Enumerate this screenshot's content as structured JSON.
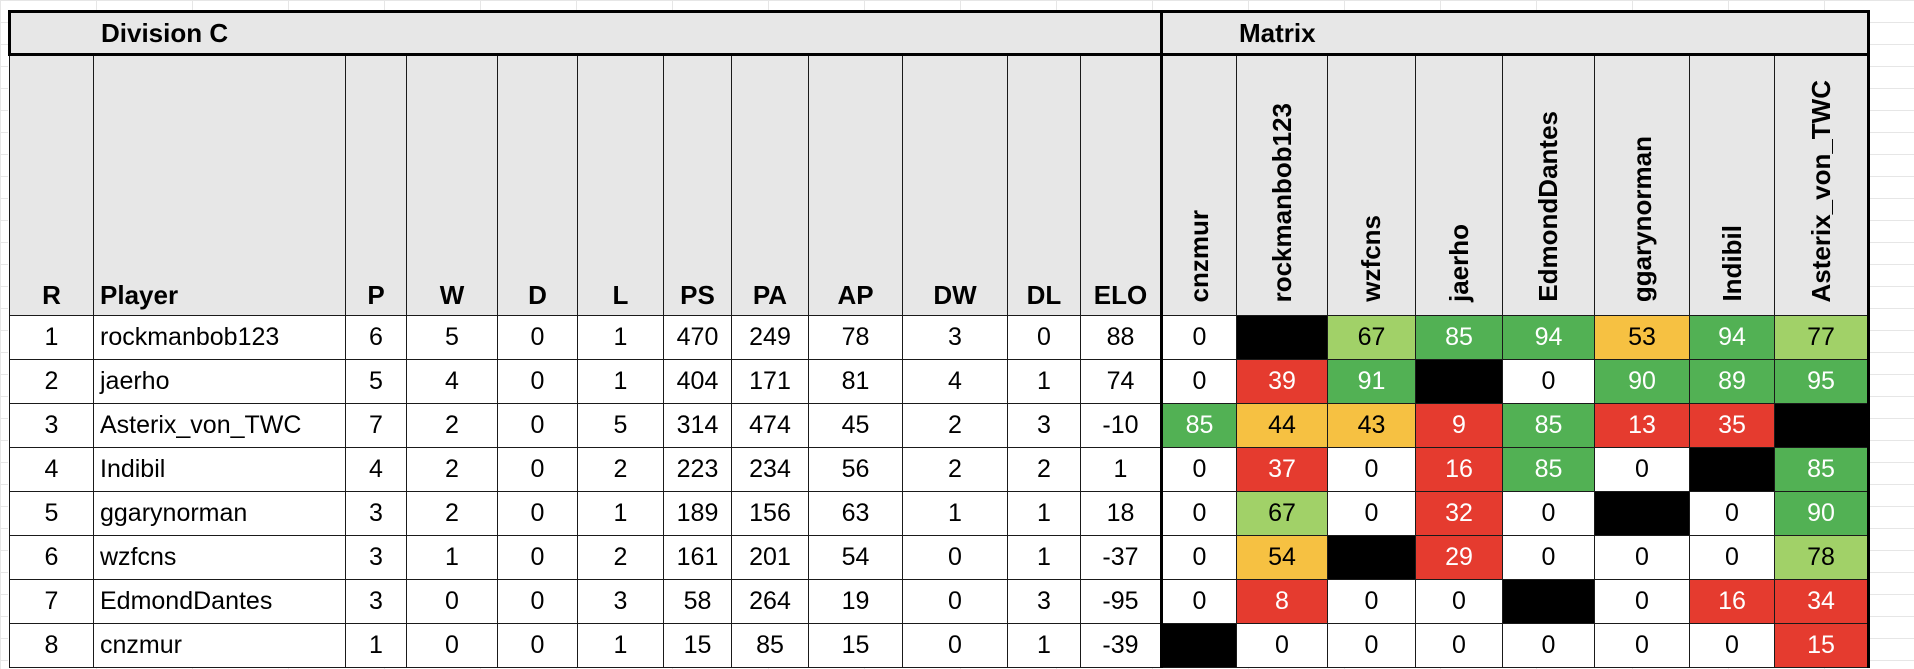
{
  "title": "Division C",
  "matrix_title": "Matrix",
  "headers": [
    "R",
    "Player",
    "P",
    "W",
    "D",
    "L",
    "PS",
    "PA",
    "AP",
    "DW",
    "DL",
    "ELO"
  ],
  "matrix_columns": [
    "cnzmur",
    "rockmanbob123",
    "wzfcns",
    "jaerho",
    "EdmondDantes",
    "ggarynorman",
    "Indibil",
    "Asterix_von_TWC"
  ],
  "colors": {
    "red": "#e53b2f",
    "orange": "#f6c142",
    "light_green": "#a1d168",
    "green": "#52b154",
    "black": "#000000",
    "header_bg": "#e7e7e7"
  },
  "rows": [
    {
      "r": "1",
      "player": "rockmanbob123",
      "p": "6",
      "w": "5",
      "d": "0",
      "l": "1",
      "ps": "470",
      "pa": "249",
      "ap": "78",
      "dw": "3",
      "dl": "0",
      "elo": "88",
      "matrix": [
        {
          "v": "0",
          "c": ""
        },
        {
          "v": "",
          "c": "black"
        },
        {
          "v": "67",
          "c": "lgreen"
        },
        {
          "v": "85",
          "c": "green"
        },
        {
          "v": "94",
          "c": "green"
        },
        {
          "v": "53",
          "c": "orange"
        },
        {
          "v": "94",
          "c": "green"
        },
        {
          "v": "77",
          "c": "lgreen"
        }
      ]
    },
    {
      "r": "2",
      "player": "jaerho",
      "p": "5",
      "w": "4",
      "d": "0",
      "l": "1",
      "ps": "404",
      "pa": "171",
      "ap": "81",
      "dw": "4",
      "dl": "1",
      "elo": "74",
      "matrix": [
        {
          "v": "0",
          "c": ""
        },
        {
          "v": "39",
          "c": "red"
        },
        {
          "v": "91",
          "c": "green"
        },
        {
          "v": "",
          "c": "black"
        },
        {
          "v": "0",
          "c": ""
        },
        {
          "v": "90",
          "c": "green"
        },
        {
          "v": "89",
          "c": "green"
        },
        {
          "v": "95",
          "c": "green"
        }
      ]
    },
    {
      "r": "3",
      "player": "Asterix_von_TWC",
      "p": "7",
      "w": "2",
      "d": "0",
      "l": "5",
      "ps": "314",
      "pa": "474",
      "ap": "45",
      "dw": "2",
      "dl": "3",
      "elo": "-10",
      "matrix": [
        {
          "v": "85",
          "c": "green"
        },
        {
          "v": "44",
          "c": "orange"
        },
        {
          "v": "43",
          "c": "orange"
        },
        {
          "v": "9",
          "c": "red"
        },
        {
          "v": "85",
          "c": "green"
        },
        {
          "v": "13",
          "c": "red"
        },
        {
          "v": "35",
          "c": "red"
        },
        {
          "v": "",
          "c": "black"
        }
      ]
    },
    {
      "r": "4",
      "player": "Indibil",
      "p": "4",
      "w": "2",
      "d": "0",
      "l": "2",
      "ps": "223",
      "pa": "234",
      "ap": "56",
      "dw": "2",
      "dl": "2",
      "elo": "1",
      "matrix": [
        {
          "v": "0",
          "c": ""
        },
        {
          "v": "37",
          "c": "red"
        },
        {
          "v": "0",
          "c": ""
        },
        {
          "v": "16",
          "c": "red"
        },
        {
          "v": "85",
          "c": "green"
        },
        {
          "v": "0",
          "c": ""
        },
        {
          "v": "",
          "c": "black"
        },
        {
          "v": "85",
          "c": "green"
        }
      ]
    },
    {
      "r": "5",
      "player": "ggarynorman",
      "p": "3",
      "w": "2",
      "d": "0",
      "l": "1",
      "ps": "189",
      "pa": "156",
      "ap": "63",
      "dw": "1",
      "dl": "1",
      "elo": "18",
      "matrix": [
        {
          "v": "0",
          "c": ""
        },
        {
          "v": "67",
          "c": "lgreen"
        },
        {
          "v": "0",
          "c": ""
        },
        {
          "v": "32",
          "c": "red"
        },
        {
          "v": "0",
          "c": ""
        },
        {
          "v": "",
          "c": "black"
        },
        {
          "v": "0",
          "c": ""
        },
        {
          "v": "90",
          "c": "green"
        }
      ]
    },
    {
      "r": "6",
      "player": "wzfcns",
      "p": "3",
      "w": "1",
      "d": "0",
      "l": "2",
      "ps": "161",
      "pa": "201",
      "ap": "54",
      "dw": "0",
      "dl": "1",
      "elo": "-37",
      "matrix": [
        {
          "v": "0",
          "c": ""
        },
        {
          "v": "54",
          "c": "orange"
        },
        {
          "v": "",
          "c": "black"
        },
        {
          "v": "29",
          "c": "red"
        },
        {
          "v": "0",
          "c": ""
        },
        {
          "v": "0",
          "c": ""
        },
        {
          "v": "0",
          "c": ""
        },
        {
          "v": "78",
          "c": "lgreen"
        }
      ]
    },
    {
      "r": "7",
      "player": "EdmondDantes",
      "p": "3",
      "w": "0",
      "d": "0",
      "l": "3",
      "ps": "58",
      "pa": "264",
      "ap": "19",
      "dw": "0",
      "dl": "3",
      "elo": "-95",
      "matrix": [
        {
          "v": "0",
          "c": ""
        },
        {
          "v": "8",
          "c": "red"
        },
        {
          "v": "0",
          "c": ""
        },
        {
          "v": "0",
          "c": ""
        },
        {
          "v": "",
          "c": "black"
        },
        {
          "v": "0",
          "c": ""
        },
        {
          "v": "16",
          "c": "red"
        },
        {
          "v": "34",
          "c": "red"
        }
      ]
    },
    {
      "r": "8",
      "player": "cnzmur",
      "p": "1",
      "w": "0",
      "d": "0",
      "l": "1",
      "ps": "15",
      "pa": "85",
      "ap": "15",
      "dw": "0",
      "dl": "1",
      "elo": "-39",
      "matrix": [
        {
          "v": "",
          "c": "black"
        },
        {
          "v": "0",
          "c": ""
        },
        {
          "v": "0",
          "c": ""
        },
        {
          "v": "0",
          "c": ""
        },
        {
          "v": "0",
          "c": ""
        },
        {
          "v": "0",
          "c": ""
        },
        {
          "v": "0",
          "c": ""
        },
        {
          "v": "15",
          "c": "red"
        }
      ]
    }
  ]
}
